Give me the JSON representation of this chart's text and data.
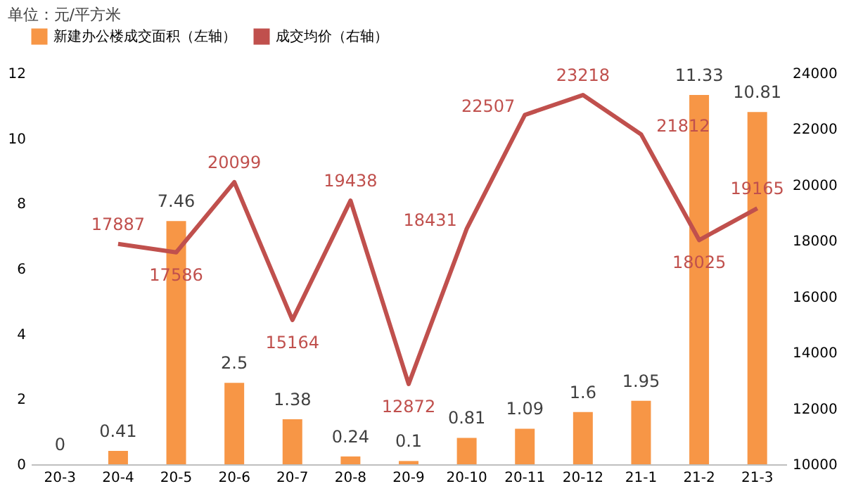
{
  "chart_data": {
    "type": "bar",
    "annotations": [
      "单位：元/平方米"
    ],
    "categories": [
      "20-3",
      "20-4",
      "20-5",
      "20-6",
      "20-7",
      "20-8",
      "20-9",
      "20-10",
      "20-11",
      "20-12",
      "21-1",
      "21-2",
      "21-3"
    ],
    "series": [
      {
        "name": "新建办公楼成交面积（左轴）",
        "color": "#f79646",
        "values": [
          0,
          0.41,
          7.46,
          2.5,
          1.38,
          0.24,
          0.1,
          0.81,
          1.09,
          1.6,
          1.95,
          11.33,
          10.81
        ]
      },
      {
        "name": "成交均价（右轴）",
        "type": "line",
        "axis": "y2",
        "color": "#c0504d",
        "values": [
          null,
          17887,
          17586,
          20099,
          15164,
          19438,
          12872,
          18431,
          22507,
          23218,
          21812,
          18025,
          19165
        ]
      }
    ],
    "ylim": [
      0,
      12
    ],
    "yticks": [
      0,
      2,
      4,
      6,
      8,
      10,
      12
    ],
    "y2lim": [
      10000,
      24000
    ],
    "y2ticks": [
      10000,
      12000,
      14000,
      16000,
      18000,
      20000,
      22000,
      24000
    ],
    "data_labels": true,
    "legend": "top",
    "grid": false,
    "marker": "none"
  }
}
